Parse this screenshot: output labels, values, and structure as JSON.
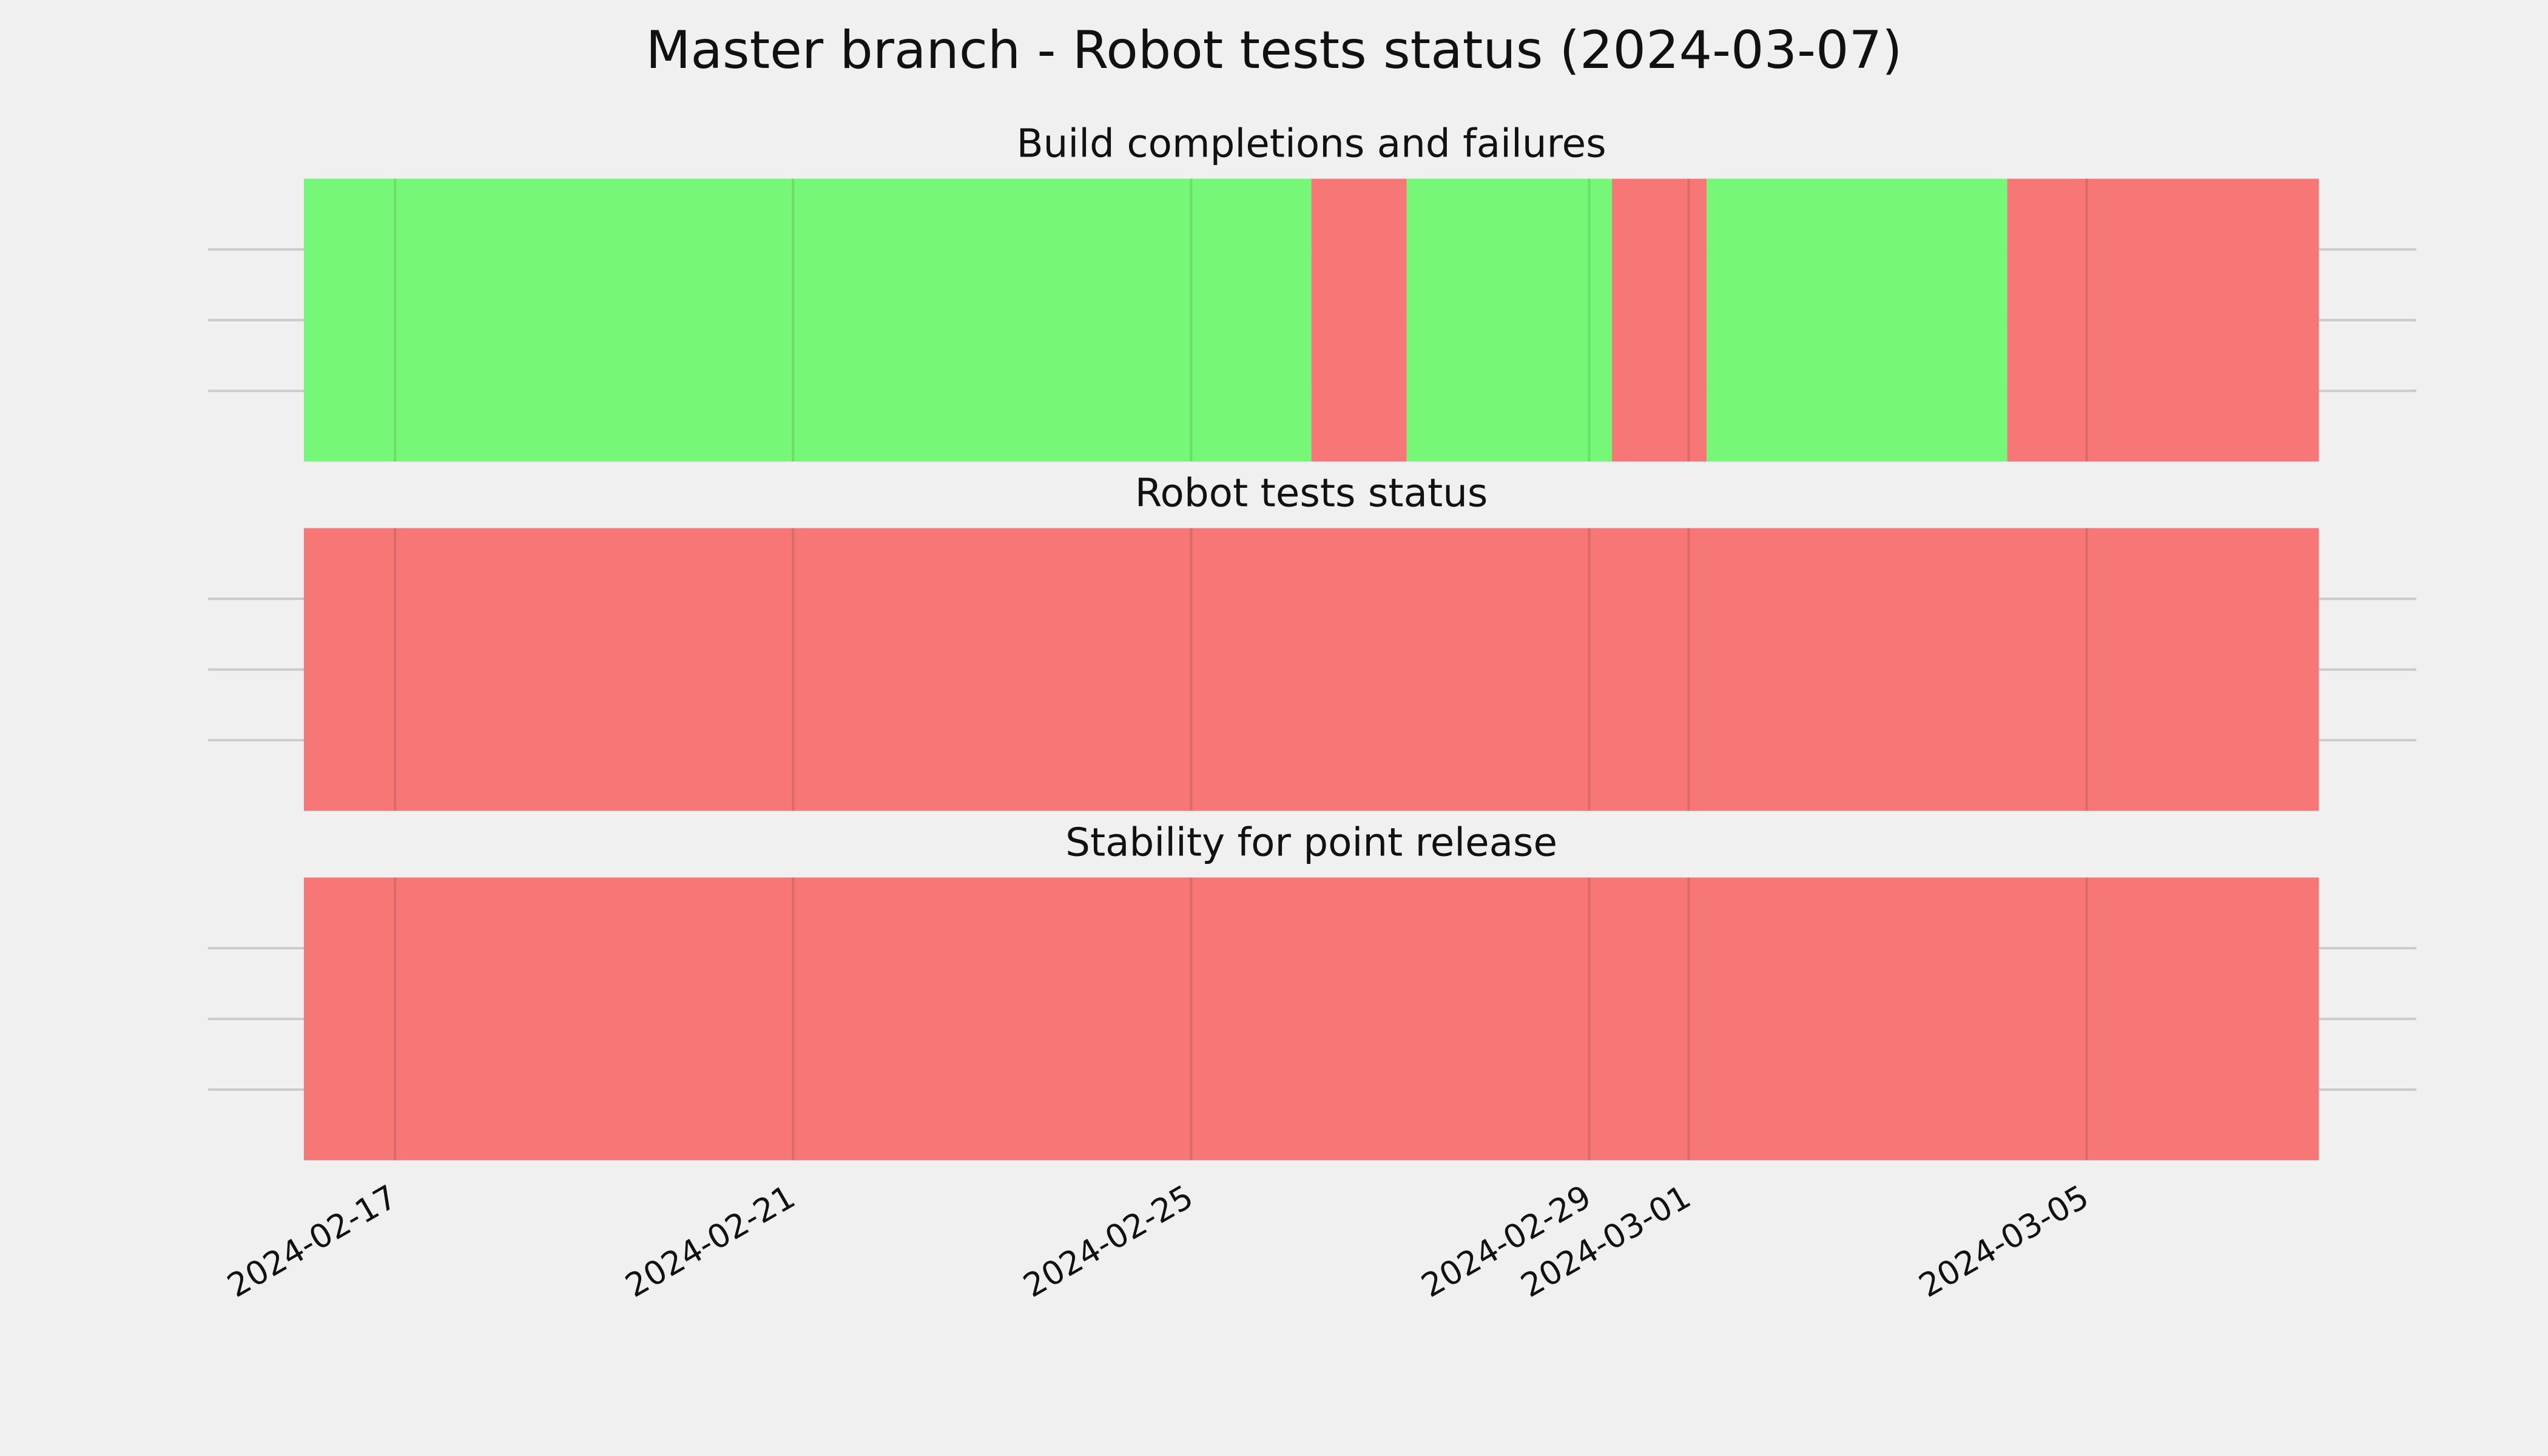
{
  "title": "Master branch - Robot tests status (2024-03-07)",
  "chart_data": [
    {
      "type": "timeline",
      "title": "Build completions and failures",
      "xlim": [
        "2024-02-16T02:00",
        "2024-03-07T08:00"
      ],
      "xticks": [
        "2024-02-17",
        "2024-02-21",
        "2024-02-25",
        "2024-02-29",
        "2024-03-01",
        "2024-03-05"
      ],
      "segments": [
        {
          "start": "2024-02-16T02:00",
          "end": "2024-02-26T05:00",
          "color": "#76f777"
        },
        {
          "start": "2024-02-26T05:00",
          "end": "2024-02-27T04:00",
          "color": "#f77676"
        },
        {
          "start": "2024-02-27T04:00",
          "end": "2024-02-29T05:30",
          "color": "#76f777"
        },
        {
          "start": "2024-02-29T05:30",
          "end": "2024-03-01T04:20",
          "color": "#f77676"
        },
        {
          "start": "2024-03-01T04:20",
          "end": "2024-03-04T04:50",
          "color": "#76f777"
        },
        {
          "start": "2024-03-04T04:50",
          "end": "2024-03-07T08:00",
          "color": "#f77676"
        }
      ]
    },
    {
      "type": "timeline",
      "title": "Robot tests status",
      "xlim": [
        "2024-02-16T02:00",
        "2024-03-07T08:00"
      ],
      "xticks": [
        "2024-02-17",
        "2024-02-21",
        "2024-02-25",
        "2024-02-29",
        "2024-03-01",
        "2024-03-05"
      ],
      "segments": [
        {
          "start": "2024-02-16T02:00",
          "end": "2024-03-07T08:00",
          "color": "#f77676"
        }
      ]
    },
    {
      "type": "timeline",
      "title": "Stability for point release",
      "xlim": [
        "2024-02-16T02:00",
        "2024-03-07T08:00"
      ],
      "xticks": [
        "2024-02-17",
        "2024-02-21",
        "2024-02-25",
        "2024-02-29",
        "2024-03-01",
        "2024-03-05"
      ],
      "show_xtick_labels": true,
      "segments": [
        {
          "start": "2024-02-16T02:00",
          "end": "2024-03-07T08:00",
          "color": "#f77676"
        }
      ]
    }
  ]
}
